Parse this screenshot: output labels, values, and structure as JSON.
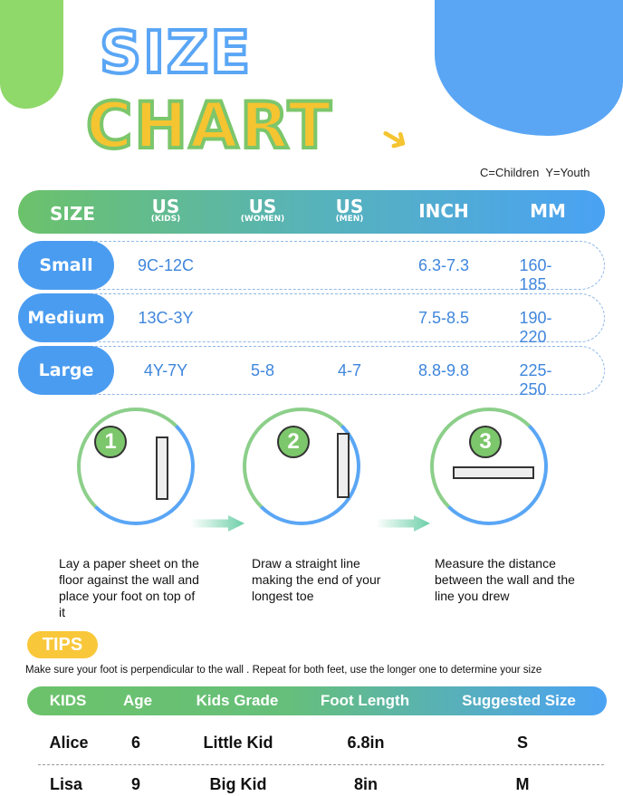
{
  "title": {
    "line1": "SIZE",
    "line2": "CHART"
  },
  "legend": "C=Children  Y=Youth",
  "size_table": {
    "headers": [
      {
        "main": "SIZE",
        "sub": ""
      },
      {
        "main": "US",
        "sub": "(KIDS)"
      },
      {
        "main": "US",
        "sub": "(WOMEN)"
      },
      {
        "main": "US",
        "sub": "(MEN)"
      },
      {
        "main": "INCH",
        "sub": ""
      },
      {
        "main": "MM",
        "sub": ""
      }
    ],
    "rows": [
      {
        "size": "Small",
        "kids": "9C-12C",
        "women": "",
        "men": "",
        "inch": "6.3-7.3",
        "mm": "160-185"
      },
      {
        "size": "Medium",
        "kids": "13C-3Y",
        "women": "",
        "men": "",
        "inch": "7.5-8.5",
        "mm": "190-220"
      },
      {
        "size": "Large",
        "kids": "4Y-7Y",
        "women": "5-8",
        "men": "4-7",
        "inch": "8.8-9.8",
        "mm": "225-250"
      }
    ]
  },
  "steps": [
    {
      "num": "1",
      "text": "Lay a paper sheet on the floor against the wall and place your foot on top of it",
      "icon": "foot-against-ruler-icon"
    },
    {
      "num": "2",
      "text": "Draw a straight line making the end of your longest toe",
      "icon": "foot-print-ruler-icon"
    },
    {
      "num": "3",
      "text": "Measure the distance between the wall and the line you drew",
      "icon": "ruler-measure-icon"
    }
  ],
  "tips": {
    "label": "TIPS",
    "text": "Make sure your foot is perpendicular to the wall . Repeat for both feet, use the longer one to determine your size"
  },
  "example_table": {
    "headers": [
      "KIDS",
      "Age",
      "Kids Grade",
      "Foot Length",
      "Suggested Size"
    ],
    "rows": [
      [
        "Alice",
        "6",
        "Little Kid",
        "6.8in",
        "S"
      ],
      [
        "Lisa",
        "9",
        "Big Kid",
        "8in",
        "M"
      ]
    ]
  },
  "colors": {
    "green": "#7cc66b",
    "blue": "#4a9cf0",
    "yellow": "#f9c73a"
  }
}
